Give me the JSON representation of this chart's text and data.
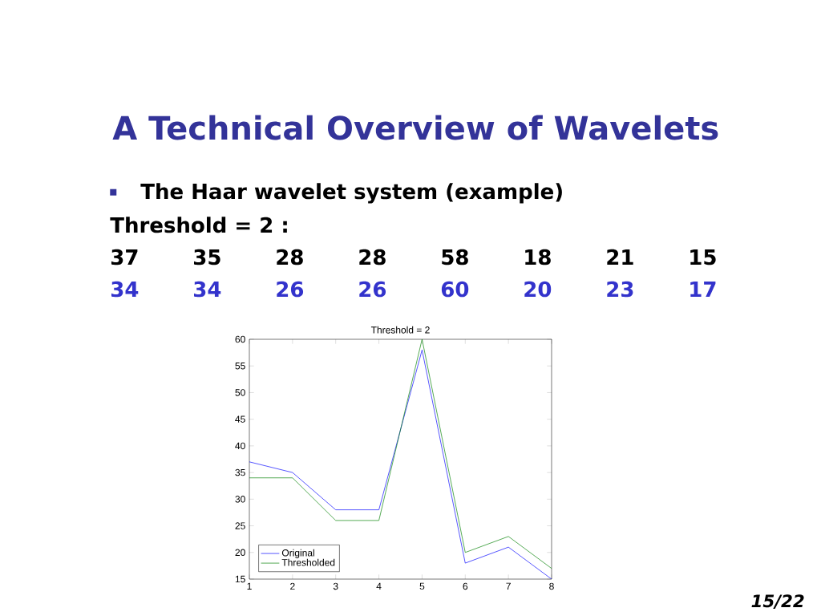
{
  "chart_data": {
    "type": "line",
    "title": "A Technical Overview of Wavelets",
    "subtitle": "The Haar wavelet system (example)",
    "annotations": [
      "Threshold = 2 :",
      "Threshold = 2",
      "15/22",
      "37",
      "35",
      "28",
      "28",
      "58",
      "18",
      "21",
      "15",
      "34",
      "34",
      "26",
      "26",
      "60",
      "20",
      "23",
      "17"
    ],
    "x": [
      1,
      2,
      3,
      4,
      5,
      6,
      7,
      8
    ],
    "series": [
      {
        "name": "Original",
        "color": "#0000ff",
        "values": [
          37,
          35,
          28,
          28,
          58,
          18,
          21,
          15
        ]
      },
      {
        "name": "Thresholded",
        "color": "#008000",
        "values": [
          34,
          34,
          26,
          26,
          60,
          20,
          23,
          17
        ]
      }
    ],
    "xlim": [
      1,
      8
    ],
    "ylim": [
      15,
      60
    ],
    "xticks": [
      1,
      2,
      3,
      4,
      5,
      6,
      7,
      8
    ],
    "yticks": [
      15,
      20,
      25,
      30,
      35,
      40,
      45,
      50,
      55,
      60
    ],
    "legend": "bottom left",
    "marker": "none",
    "line_style": "solid"
  }
}
